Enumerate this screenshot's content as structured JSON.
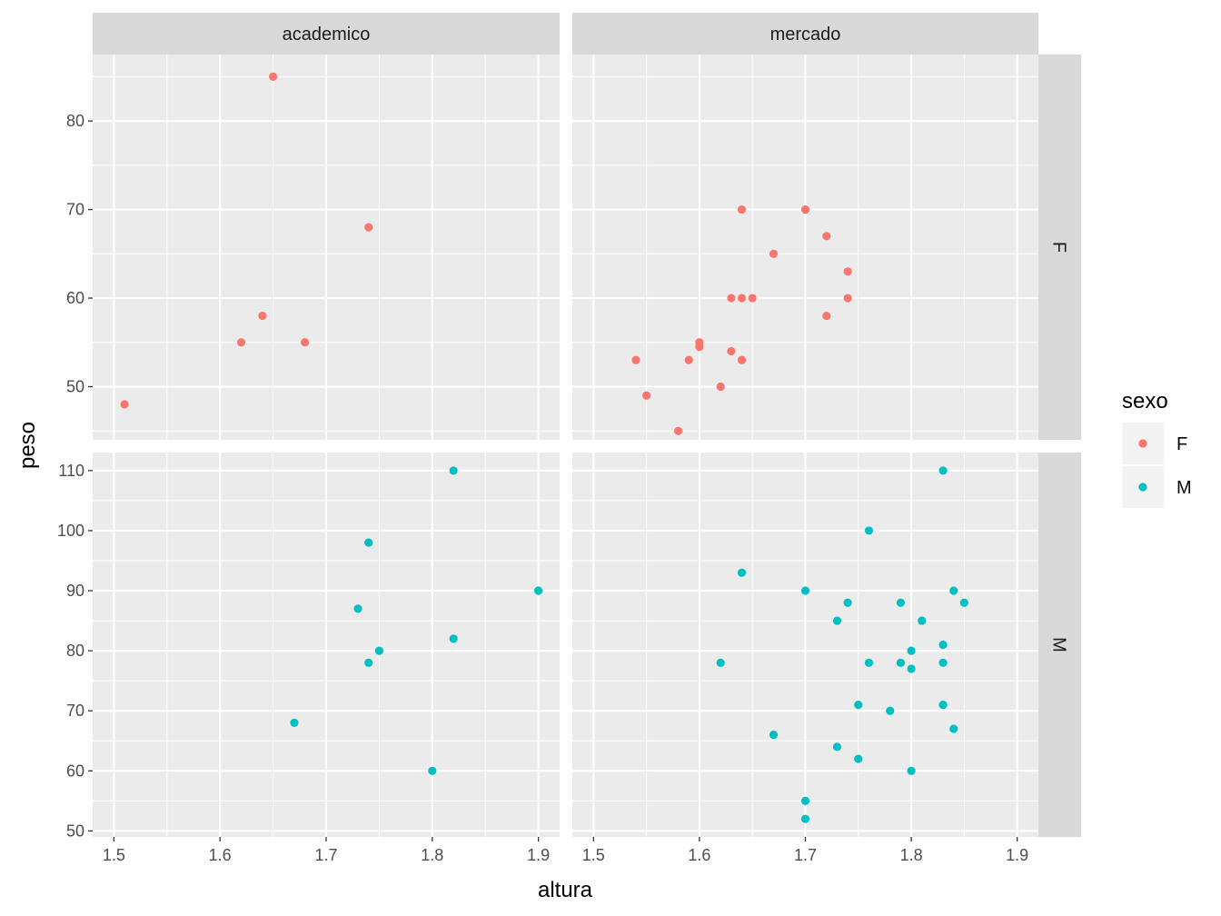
{
  "chart_data": {
    "type": "scatter",
    "xlabel": "altura",
    "ylabel": "peso",
    "legend": {
      "title": "sexo",
      "position": "right",
      "entries": [
        {
          "label": "F",
          "color": "#F8766D"
        },
        {
          "label": "M",
          "color": "#00BFC4"
        }
      ]
    },
    "facet_columns": [
      "academico",
      "mercado"
    ],
    "facet_rows": [
      "F",
      "M"
    ],
    "x_ticks": [
      "1.5",
      "1.6",
      "1.7",
      "1.8",
      "1.9"
    ],
    "xlim": [
      1.48,
      1.92
    ],
    "row_scales": {
      "F": {
        "ylim": [
          44,
          87.5
        ],
        "ticks": [
          "50",
          "60",
          "70",
          "80"
        ]
      },
      "M": {
        "ylim": [
          49,
          113
        ],
        "ticks": [
          "50",
          "60",
          "70",
          "80",
          "90",
          "100",
          "110"
        ]
      }
    },
    "panels": [
      {
        "column": "academico",
        "row": "F",
        "series": "F",
        "points": [
          [
            1.51,
            48
          ],
          [
            1.62,
            55
          ],
          [
            1.64,
            58
          ],
          [
            1.65,
            85
          ],
          [
            1.68,
            55
          ],
          [
            1.74,
            68
          ]
        ]
      },
      {
        "column": "mercado",
        "row": "F",
        "series": "F",
        "points": [
          [
            1.54,
            53
          ],
          [
            1.55,
            49
          ],
          [
            1.58,
            45
          ],
          [
            1.59,
            53
          ],
          [
            1.6,
            55
          ],
          [
            1.6,
            54.5
          ],
          [
            1.62,
            50
          ],
          [
            1.63,
            54
          ],
          [
            1.63,
            60
          ],
          [
            1.64,
            60
          ],
          [
            1.64,
            53
          ],
          [
            1.64,
            70
          ],
          [
            1.65,
            60
          ],
          [
            1.67,
            65
          ],
          [
            1.7,
            70
          ],
          [
            1.72,
            67
          ],
          [
            1.72,
            58
          ],
          [
            1.74,
            63
          ],
          [
            1.74,
            60
          ]
        ]
      },
      {
        "column": "academico",
        "row": "M",
        "series": "M",
        "points": [
          [
            1.67,
            68
          ],
          [
            1.73,
            87
          ],
          [
            1.74,
            98
          ],
          [
            1.74,
            78
          ],
          [
            1.75,
            80
          ],
          [
            1.8,
            60
          ],
          [
            1.82,
            110
          ],
          [
            1.82,
            82
          ],
          [
            1.9,
            90
          ]
        ]
      },
      {
        "column": "mercado",
        "row": "M",
        "series": "M",
        "points": [
          [
            1.62,
            78
          ],
          [
            1.64,
            93
          ],
          [
            1.67,
            66
          ],
          [
            1.7,
            90
          ],
          [
            1.7,
            55
          ],
          [
            1.7,
            52
          ],
          [
            1.73,
            85
          ],
          [
            1.73,
            64
          ],
          [
            1.74,
            88
          ],
          [
            1.75,
            71
          ],
          [
            1.75,
            62
          ],
          [
            1.76,
            100
          ],
          [
            1.76,
            78
          ],
          [
            1.78,
            70
          ],
          [
            1.79,
            88
          ],
          [
            1.79,
            78
          ],
          [
            1.8,
            80
          ],
          [
            1.8,
            77
          ],
          [
            1.8,
            60
          ],
          [
            1.81,
            85
          ],
          [
            1.83,
            110
          ],
          [
            1.83,
            81
          ],
          [
            1.83,
            78
          ],
          [
            1.83,
            71
          ],
          [
            1.84,
            90
          ],
          [
            1.84,
            67
          ],
          [
            1.85,
            88
          ]
        ]
      }
    ]
  }
}
